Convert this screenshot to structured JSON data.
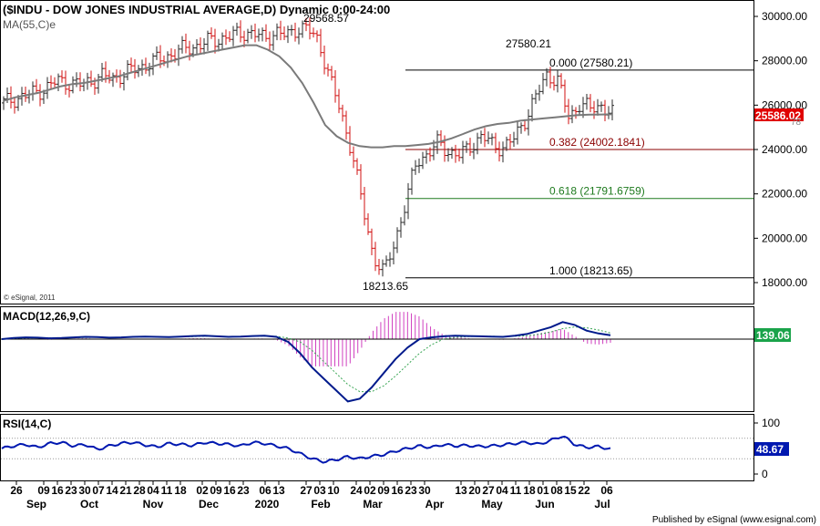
{
  "header": {
    "title": "($INDU - DOW JONES INDUSTRIAL AVERAGE,D) Dynamic 0:00-24:00",
    "ma_label": "MA(55,C)e",
    "copyright": "© eSignal, 2011",
    "published": "Published by eSignal (www.esignal.com)"
  },
  "colors": {
    "up_bar": "#2a2a2a",
    "down_bar": "#d01010",
    "ma_line": "#7a7a7a",
    "fib_0": "#000000",
    "fib_382": "#8b0000",
    "fib_618": "#1e7a1e",
    "fib_100": "#000000",
    "macd_line": "#001a8c",
    "macd_signal": "#3aa655",
    "macd_hist": "#d040c0",
    "rsi_line": "#0018b0",
    "price_tag_bg": "#e00000",
    "macd_tag_bg": "#1aa34a"
  },
  "chart_data": [
    {
      "type": "line",
      "name": "price",
      "ylim": [
        17000,
        31000
      ],
      "yticks": [
        "30000.00",
        "28000.00",
        "26000.00",
        "24000.00",
        "22000.00",
        "20000.00",
        "18000.00"
      ],
      "last_price": "25586.02",
      "ma_value_partial": "78",
      "annotations": {
        "feb_high": "29568.57",
        "mar_low": "18213.65",
        "jun_high": "27580.21"
      },
      "fib_levels": [
        {
          "ratio": "0.000",
          "value": 27580.21,
          "label": "0.000 (27580.21)"
        },
        {
          "ratio": "0.382",
          "value": 24002.1841,
          "label": "0.382 (24002.1841)"
        },
        {
          "ratio": "0.618",
          "value": 21791.6759,
          "label": "0.618 (21791.6759)"
        },
        {
          "ratio": "1.000",
          "value": 18213.65,
          "label": "1.000 (18213.65)"
        }
      ],
      "close_series": [
        26100,
        26300,
        26400,
        26600,
        26800,
        27100,
        27000,
        26900,
        27100,
        27300,
        27200,
        27400,
        27600,
        27800,
        28000,
        28200,
        28400,
        28600,
        28700,
        28900,
        29000,
        29100,
        29300,
        29200,
        29000,
        29300,
        29100,
        29500,
        29400,
        28900,
        27200,
        25700,
        24000,
        21500,
        19200,
        18400,
        19900,
        21600,
        23500,
        23800,
        24300,
        23900,
        23700,
        24200,
        24600,
        24200,
        24100,
        24500,
        25400,
        26400,
        27400,
        27100,
        25400,
        26100,
        25800,
        26000,
        25600
      ],
      "ma_series": [
        26200,
        26350,
        26450,
        26550,
        26700,
        26850,
        26950,
        27000,
        27100,
        27200,
        27300,
        27450,
        27600,
        27750,
        27900,
        28050,
        28200,
        28300,
        28400,
        28500,
        28600,
        28700,
        28700,
        28500,
        28200,
        27700,
        27000,
        26100,
        25100,
        24600,
        24300,
        24150,
        24100,
        24100,
        24150,
        24150,
        24200,
        24250,
        24350,
        24500,
        24700,
        24900,
        25050,
        25150,
        25200,
        25300,
        25350,
        25400,
        25450,
        25500,
        25550,
        25570,
        25580,
        25585,
        25590,
        25590,
        25590,
        25590,
        25590,
        25590,
        25590,
        25590,
        25590,
        25590,
        25590,
        25590,
        25590
      ]
    },
    {
      "type": "line",
      "name": "MACD(12,26,9,C)",
      "label": "MACD(12,26,9,C)",
      "last_value": "139.06",
      "ylim": [
        -2400,
        900
      ],
      "macd_series": [
        0,
        40,
        60,
        50,
        30,
        40,
        60,
        80,
        70,
        50,
        60,
        80,
        90,
        80,
        70,
        90,
        110,
        120,
        100,
        80,
        90,
        110,
        120,
        80,
        -100,
        -500,
        -1000,
        -1400,
        -1800,
        -2200,
        -2100,
        -1700,
        -1200,
        -700,
        -300,
        0,
        60,
        100,
        120,
        110,
        100,
        90,
        80,
        120,
        180,
        300,
        420,
        600,
        500,
        300,
        200,
        139
      ],
      "signal_series": [
        0,
        20,
        40,
        50,
        45,
        42,
        48,
        60,
        65,
        60,
        60,
        70,
        80,
        80,
        75,
        80,
        90,
        100,
        100,
        95,
        92,
        98,
        105,
        100,
        40,
        -100,
        -400,
        -800,
        -1200,
        -1600,
        -1850,
        -1850,
        -1650,
        -1300,
        -900,
        -500,
        -200,
        0,
        60,
        90,
        100,
        100,
        95,
        100,
        120,
        170,
        250,
        370,
        430,
        400,
        320,
        220
      ],
      "zero_line": 0
    },
    {
      "type": "line",
      "name": "RSI(14,C)",
      "label": "RSI(14,C)",
      "last_value": "48.67",
      "ylim": [
        0,
        100
      ],
      "yticks": [
        "100",
        "50",
        "0"
      ],
      "overbought": 70,
      "oversold": 30,
      "series": [
        50,
        55,
        58,
        52,
        60,
        62,
        55,
        58,
        48,
        55,
        60,
        62,
        57,
        53,
        60,
        58,
        56,
        62,
        60,
        58,
        55,
        62,
        60,
        55,
        50,
        40,
        30,
        24,
        28,
        34,
        30,
        35,
        38,
        45,
        50,
        55,
        52,
        58,
        55,
        56,
        54,
        55,
        57,
        60,
        62,
        58,
        66,
        75,
        58,
        52,
        54,
        48.67
      ]
    }
  ],
  "x_axis": {
    "ticks": [
      {
        "label": "26",
        "x": 18
      },
      {
        "label": "09",
        "x": 48
      },
      {
        "label": "16",
        "x": 63
      },
      {
        "label": "23",
        "x": 78
      },
      {
        "label": "30",
        "x": 93
      },
      {
        "label": "07",
        "x": 108
      },
      {
        "label": "14",
        "x": 123
      },
      {
        "label": "21",
        "x": 138
      },
      {
        "label": "28",
        "x": 153
      },
      {
        "label": "04",
        "x": 168
      },
      {
        "label": "11",
        "x": 183
      },
      {
        "label": "18",
        "x": 198
      },
      {
        "label": "02",
        "x": 222
      },
      {
        "label": "09",
        "x": 237
      },
      {
        "label": "16",
        "x": 252
      },
      {
        "label": "23",
        "x": 267
      },
      {
        "label": "06",
        "x": 291
      },
      {
        "label": "13",
        "x": 306
      },
      {
        "label": "27",
        "x": 336
      },
      {
        "label": "03",
        "x": 351
      },
      {
        "label": "10",
        "x": 366
      },
      {
        "label": "24",
        "x": 391
      },
      {
        "label": "02",
        "x": 406
      },
      {
        "label": "09",
        "x": 421
      },
      {
        "label": "16",
        "x": 436
      },
      {
        "label": "23",
        "x": 451
      },
      {
        "label": "30",
        "x": 466
      },
      {
        "label": "13",
        "x": 506
      },
      {
        "label": "20",
        "x": 521
      },
      {
        "label": "27",
        "x": 536
      },
      {
        "label": "04",
        "x": 551
      },
      {
        "label": "11",
        "x": 566
      },
      {
        "label": "18",
        "x": 581
      },
      {
        "label": "01",
        "x": 596
      },
      {
        "label": "08",
        "x": 611
      },
      {
        "label": "15",
        "x": 626
      },
      {
        "label": "22",
        "x": 641
      },
      {
        "label": "06",
        "x": 666
      }
    ],
    "months": [
      {
        "label": "Sep",
        "x": 40
      },
      {
        "label": "Oct",
        "x": 98
      },
      {
        "label": "Nov",
        "x": 168
      },
      {
        "label": "Dec",
        "x": 229
      },
      {
        "label": "2020",
        "x": 293
      },
      {
        "label": "Feb",
        "x": 352
      },
      {
        "label": "Mar",
        "x": 409
      },
      {
        "label": "Apr",
        "x": 477
      },
      {
        "label": "May",
        "x": 540
      },
      {
        "label": "Jun",
        "x": 598
      },
      {
        "label": "Jul",
        "x": 661
      }
    ]
  }
}
